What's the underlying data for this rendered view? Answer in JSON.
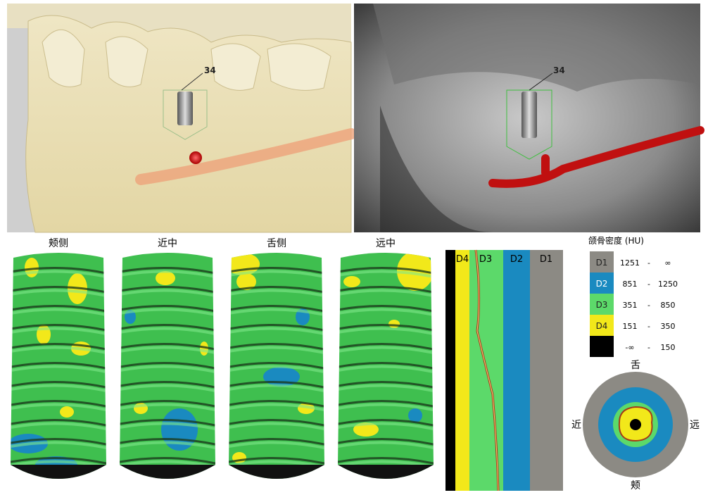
{
  "views": [
    {
      "implant_label": "34"
    },
    {
      "implant_label": "34"
    }
  ],
  "implant_views": [
    "颊侧",
    "近中",
    "舌侧",
    "远中"
  ],
  "density_profile": {
    "bands": [
      "D4",
      "D3",
      "D2",
      "D1"
    ]
  },
  "legend": {
    "title": "颌骨密度 (HU)",
    "rows": [
      {
        "class": "D1",
        "min": "1251",
        "sep": "-",
        "max": "∞"
      },
      {
        "class": "D2",
        "min": "851",
        "sep": "-",
        "max": "1250"
      },
      {
        "class": "D3",
        "min": "351",
        "sep": "-",
        "max": "850"
      },
      {
        "class": "D4",
        "min": "151",
        "sep": "-",
        "max": "350"
      },
      {
        "min": "-∞",
        "sep": "-",
        "max": "150"
      }
    ]
  },
  "orientation": {
    "top": "舌",
    "left": "近",
    "right": "远",
    "bottom": "颊"
  }
}
